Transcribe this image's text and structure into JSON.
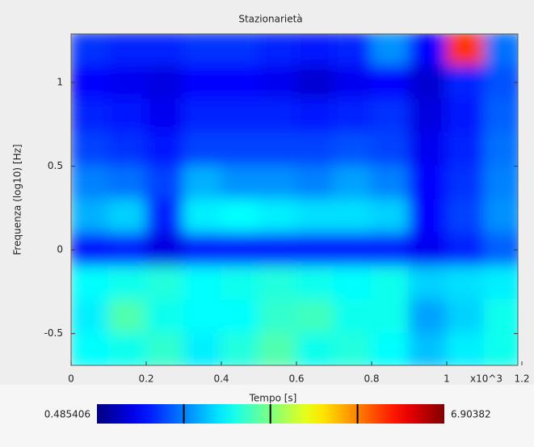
{
  "chart_data": {
    "type": "heatmap",
    "title": "Stazionarietà",
    "x_label": "Tempo [s]",
    "y_label": "Frequenza (log10) [Hz]",
    "x_annotation": "x10^3",
    "x": [
      0.05,
      0.15,
      0.25,
      0.35,
      0.45,
      0.55,
      0.65,
      0.75,
      0.85,
      0.95,
      1.05,
      1.15
    ],
    "y": [
      1.2,
      1.0,
      0.8,
      0.6,
      0.4,
      0.2,
      0.0,
      -0.2,
      -0.4,
      -0.6
    ],
    "z": [
      [
        1.6,
        1.5,
        1.5,
        1.6,
        1.6,
        1.5,
        1.4,
        1.5,
        2.2,
        1.3,
        5.8,
        2.0
      ],
      [
        1.3,
        1.2,
        1.1,
        1.3,
        1.3,
        1.2,
        1.0,
        1.2,
        1.3,
        1.0,
        1.5,
        1.8
      ],
      [
        1.5,
        1.4,
        1.2,
        1.5,
        1.5,
        1.5,
        1.4,
        1.5,
        1.6,
        1.1,
        1.4,
        1.9
      ],
      [
        1.7,
        1.6,
        1.4,
        1.7,
        1.7,
        1.7,
        1.7,
        1.8,
        1.7,
        1.2,
        1.5,
        2.0
      ],
      [
        2.1,
        2.0,
        1.7,
        2.4,
        2.2,
        2.2,
        2.1,
        2.3,
        2.1,
        1.3,
        1.6,
        2.1
      ],
      [
        2.4,
        2.6,
        1.5,
        2.8,
        2.9,
        2.8,
        2.7,
        2.7,
        2.6,
        1.3,
        1.7,
        2.2
      ],
      [
        1.4,
        1.5,
        1.1,
        1.5,
        1.5,
        1.5,
        1.5,
        1.5,
        1.5,
        1.2,
        1.5,
        1.9
      ],
      [
        2.9,
        3.0,
        3.1,
        2.9,
        3.0,
        3.1,
        3.0,
        2.9,
        3.0,
        2.6,
        2.7,
        2.8
      ],
      [
        2.8,
        3.4,
        3.0,
        2.9,
        2.9,
        3.2,
        3.3,
        3.0,
        3.0,
        2.3,
        2.6,
        3.0
      ],
      [
        2.9,
        3.0,
        3.2,
        2.8,
        3.1,
        3.4,
        3.0,
        3.1,
        2.9,
        2.5,
        2.8,
        3.0
      ]
    ],
    "xlim": [
      0,
      1.2
    ],
    "ylim": [
      -0.69,
      1.29
    ],
    "xticks": [
      0,
      0.2,
      0.4,
      0.6,
      0.8,
      1,
      1.2
    ],
    "yticks": [
      -0.5,
      0,
      0.5,
      1
    ],
    "colormap": "jet",
    "zlim": [
      0.485406,
      6.90382
    ],
    "colorbar_ticks": [
      2.09,
      3.69,
      5.3
    ]
  }
}
